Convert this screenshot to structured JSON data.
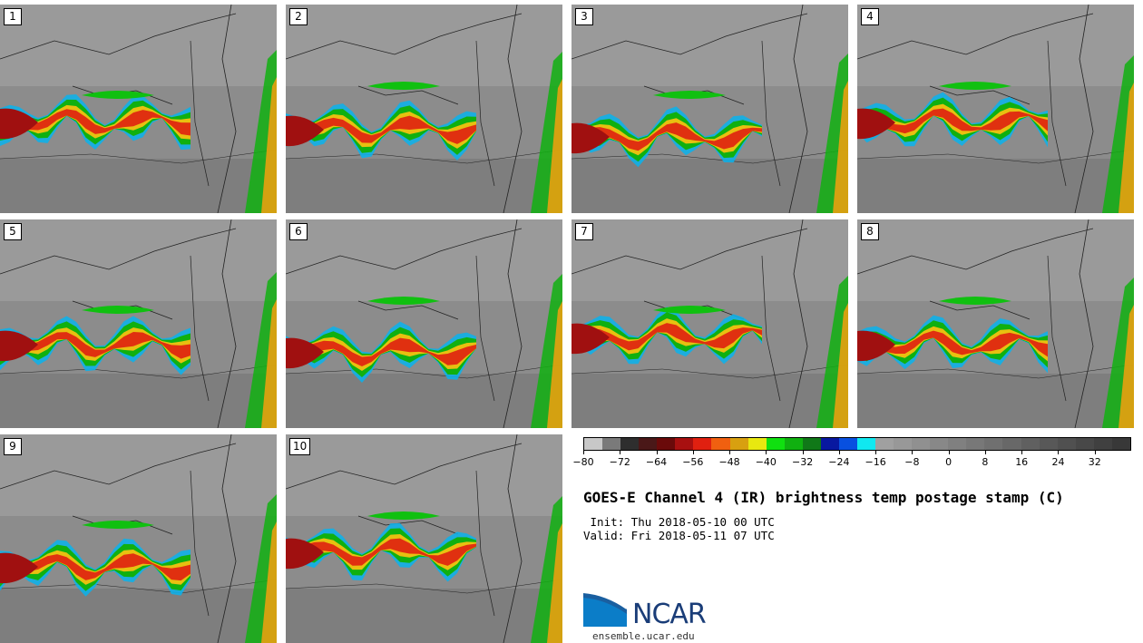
{
  "panels": [
    {
      "label": "1"
    },
    {
      "label": "2"
    },
    {
      "label": "3"
    },
    {
      "label": "4"
    },
    {
      "label": "5"
    },
    {
      "label": "6"
    },
    {
      "label": "7"
    },
    {
      "label": "8"
    },
    {
      "label": "9"
    },
    {
      "label": "10"
    }
  ],
  "colorbar": {
    "tick_labels": [
      "−80",
      "−72",
      "−64",
      "−56",
      "−48",
      "−40",
      "−32",
      "−24",
      "−16",
      "−8",
      "0",
      "8",
      "16",
      "24",
      "32"
    ],
    "colors": [
      "#c8c8c8",
      "#7a7a7a",
      "#2e2e2e",
      "#4a1818",
      "#6a0a0a",
      "#a81010",
      "#e02010",
      "#f06010",
      "#d8a010",
      "#e8e810",
      "#10e010",
      "#10b010",
      "#107818",
      "#0818a0",
      "#0850e0",
      "#10e8f0",
      "#a0a0a0",
      "#989898",
      "#909090",
      "#888888",
      "#808080",
      "#787878",
      "#707070",
      "#686868",
      "#606060",
      "#585858",
      "#505050",
      "#484848",
      "#404040",
      "#383838"
    ]
  },
  "title": "GOES-E Channel 4 (IR) brightness temp postage stamp (C)",
  "init": " Init: Thu 2018-05-10 00 UTC",
  "valid": "Valid: Fri 2018-05-11 07 UTC",
  "logo": {
    "text": "NCAR",
    "url": "ensemble.ucar.edu"
  }
}
